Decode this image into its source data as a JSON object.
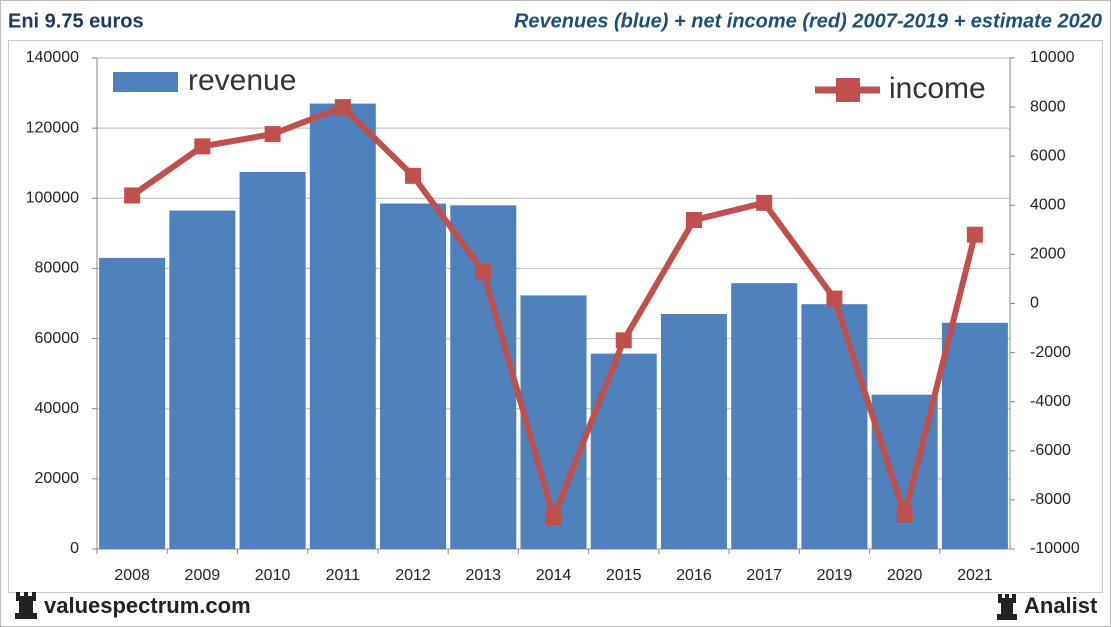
{
  "chart_data": {
    "type": "bar-line",
    "subtitle": "Eni 9.75 euros",
    "title": "Revenues (blue) + net income (red) 2007-2019 + estimate 2020",
    "categories": [
      "2008",
      "2009",
      "2010",
      "2011",
      "2012",
      "2013",
      "2014",
      "2015",
      "2016",
      "2017",
      "2019",
      "2020",
      "2021"
    ],
    "series": [
      {
        "name": "revenue",
        "color": "#4f81bd",
        "type": "bar",
        "axis": "y",
        "values": [
          83000,
          96500,
          107500,
          127000,
          98500,
          98000,
          72300,
          55700,
          67000,
          75800,
          69800,
          44000,
          64500
        ]
      },
      {
        "name": "income",
        "color": "#c0504d",
        "type": "line",
        "axis": "y2",
        "values": [
          4400,
          6400,
          6900,
          8000,
          5200,
          1300,
          -8700,
          -1500,
          3400,
          4100,
          200,
          -8600,
          2800
        ]
      }
    ],
    "ylim": [
      0,
      140000
    ],
    "yticks": [
      0,
      20000,
      40000,
      60000,
      80000,
      100000,
      120000,
      140000
    ],
    "y2lim": [
      -10000,
      10000
    ],
    "y2ticks": [
      -10000,
      -8000,
      -6000,
      -4000,
      -2000,
      0,
      2000,
      4000,
      6000,
      8000,
      10000
    ],
    "grid": true
  },
  "footer": {
    "left": "valuespectrum.com",
    "right": "Analist"
  }
}
